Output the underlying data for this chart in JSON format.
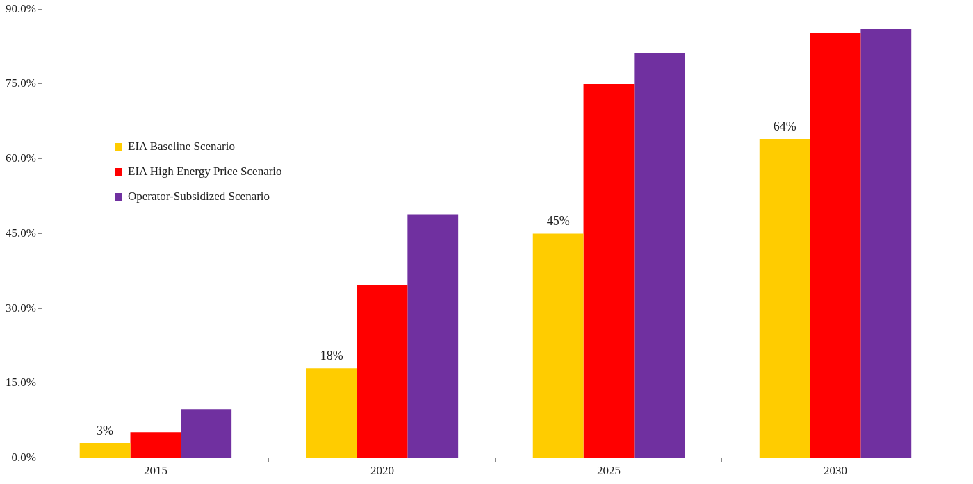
{
  "chart_data": {
    "type": "bar",
    "categories": [
      "2015",
      "2020",
      "2025",
      "2030"
    ],
    "series": [
      {
        "name": "EIA Baseline Scenario",
        "color": "#ffcc00",
        "values": [
          3,
          18,
          45,
          64
        ],
        "value_labels": [
          "3%",
          "18%",
          "45%",
          "64%"
        ]
      },
      {
        "name": "EIA High Energy Price Scenario",
        "color": "#ff0000",
        "values": [
          5.2,
          34.7,
          75.0,
          85.3
        ]
      },
      {
        "name": "Operator-Subsidized Scenario",
        "color": "#7030a0",
        "values": [
          9.8,
          48.9,
          81.1,
          86.0
        ]
      }
    ],
    "ylim": [
      0,
      90
    ],
    "yticks": [
      {
        "value": 0,
        "label": "0.0%"
      },
      {
        "value": 15,
        "label": "15.0%"
      },
      {
        "value": 30,
        "label": "30.0%"
      },
      {
        "value": 45,
        "label": "45.0%"
      },
      {
        "value": 60,
        "label": "60.0%"
      },
      {
        "value": 75,
        "label": "75.0%"
      },
      {
        "value": 90,
        "label": "90.0%"
      }
    ],
    "grid": false,
    "legend": "left"
  }
}
